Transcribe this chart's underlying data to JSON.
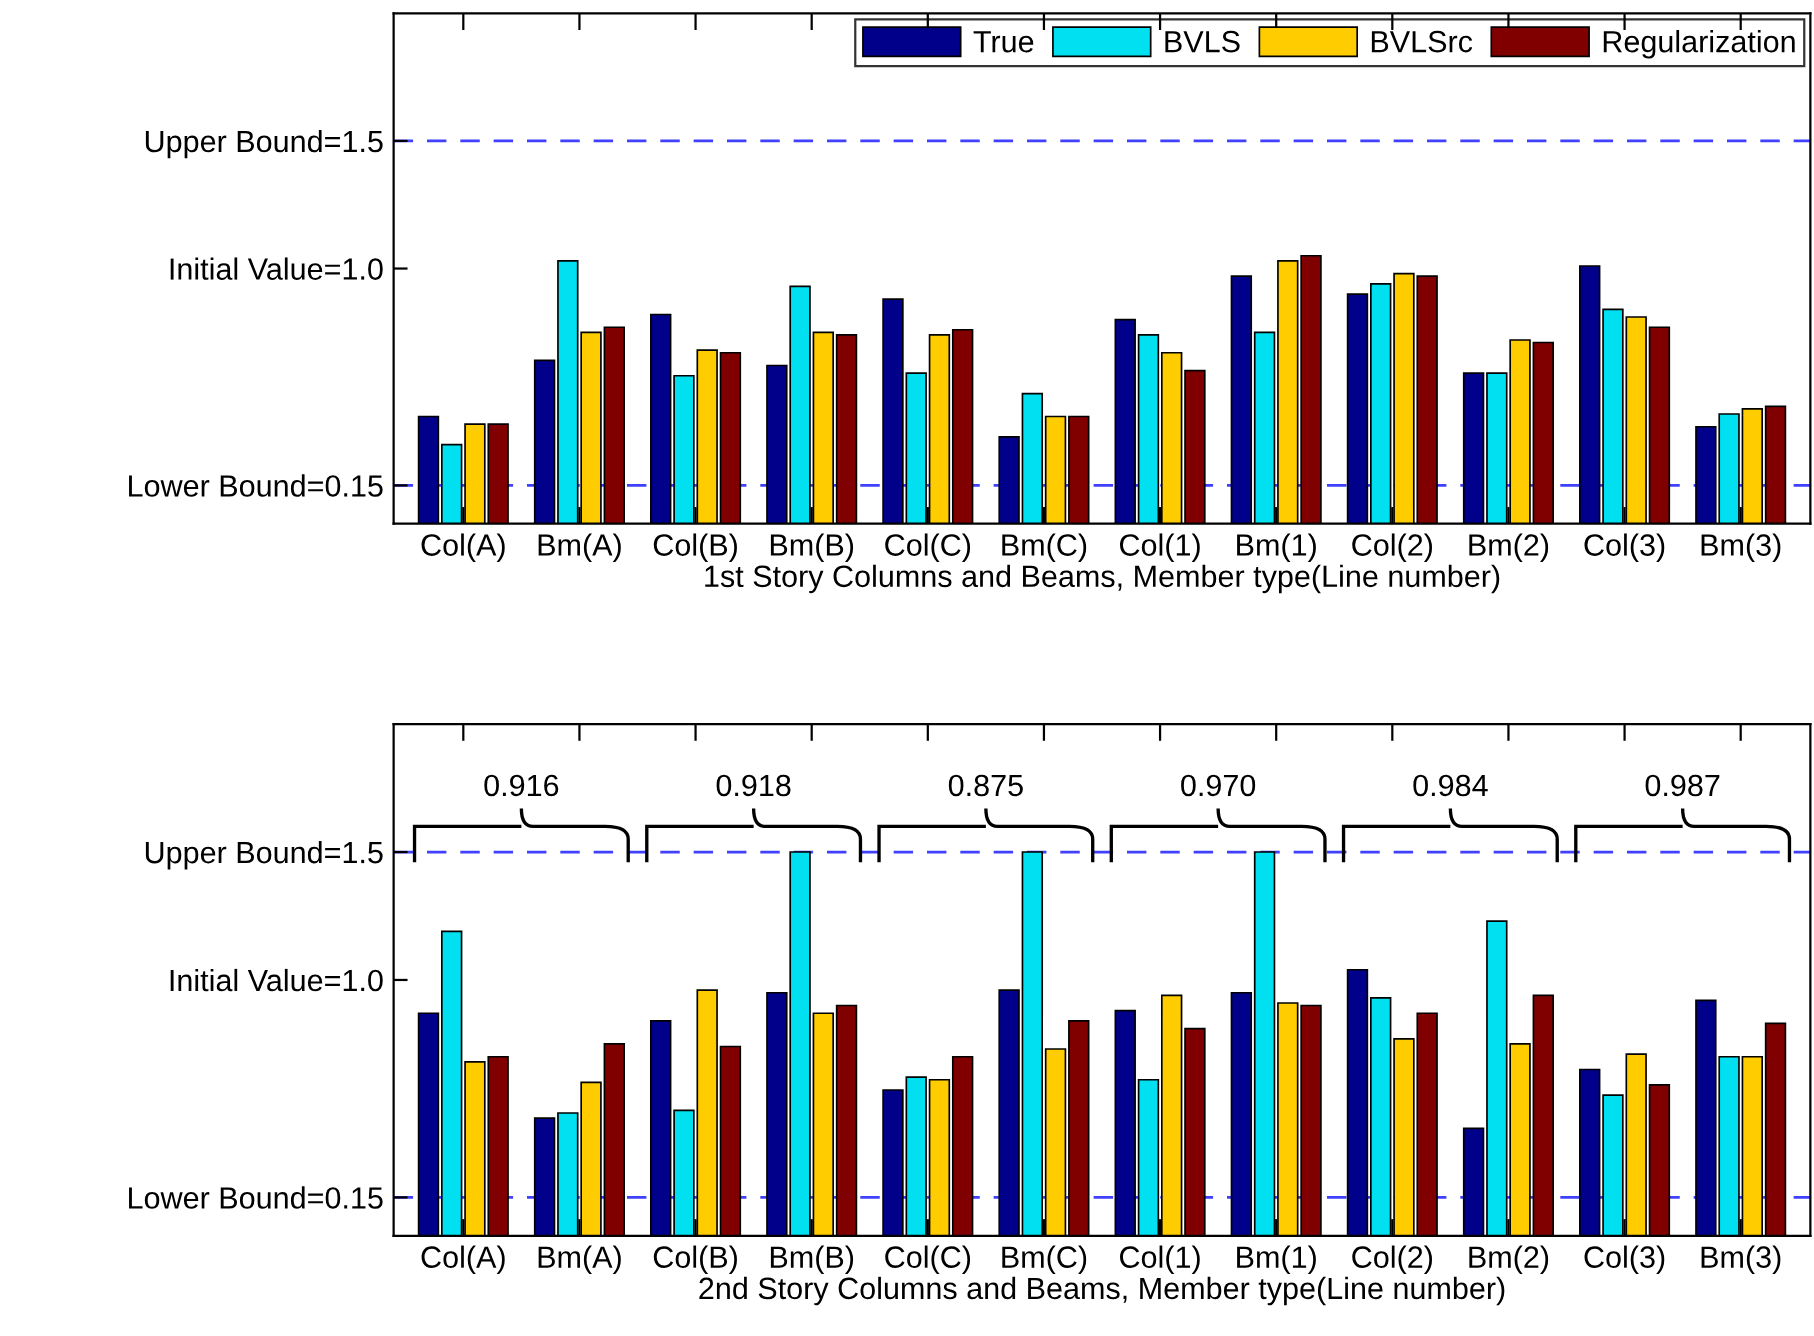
{
  "chart_data": [
    {
      "type": "bar",
      "xlabel": "1st Story Columns and Beams, Member type(Line number)",
      "categories": [
        "Col(A)",
        "Bm(A)",
        "Col(B)",
        "Bm(B)",
        "Col(C)",
        "Bm(C)",
        "Col(1)",
        "Bm(1)",
        "Col(2)",
        "Bm(2)",
        "Col(3)",
        "Bm(3)"
      ],
      "series": [
        {
          "name": "True",
          "color": "#00008b",
          "values": [
            0.42,
            0.64,
            0.82,
            0.62,
            0.88,
            0.34,
            0.8,
            0.97,
            0.9,
            0.59,
            1.01,
            0.38
          ]
        },
        {
          "name": "BVLS",
          "color": "#00e0f0",
          "values": [
            0.31,
            1.03,
            0.58,
            0.93,
            0.59,
            0.51,
            0.74,
            0.75,
            0.94,
            0.59,
            0.84,
            0.43
          ]
        },
        {
          "name": "BVLSrc",
          "color": "#ffcc00",
          "values": [
            0.39,
            0.75,
            0.68,
            0.75,
            0.74,
            0.42,
            0.67,
            1.03,
            0.98,
            0.72,
            0.81,
            0.45
          ]
        },
        {
          "name": "Regularization",
          "color": "#800000",
          "values": [
            0.39,
            0.77,
            0.67,
            0.74,
            0.76,
            0.42,
            0.6,
            1.05,
            0.97,
            0.71,
            0.77,
            0.46
          ]
        }
      ],
      "ylim": [
        0,
        2
      ],
      "yticks": [
        {
          "value": 0.15,
          "label": "Lower Bound=0.15"
        },
        {
          "value": 1.0,
          "label": "Initial Value=1.0"
        },
        {
          "value": 1.5,
          "label": "Upper Bound=1.5"
        }
      ],
      "ref_lines": [
        {
          "axis": "y",
          "value": 0.15,
          "color": "#4040ff",
          "line_style": "dashed"
        },
        {
          "axis": "y",
          "value": 1.5,
          "color": "#4040ff",
          "line_style": "dashed"
        }
      ],
      "legend": "top right",
      "grid": false
    },
    {
      "type": "bar",
      "xlabel": "2nd Story Columns and Beams, Member type(Line number)",
      "categories": [
        "Col(A)",
        "Bm(A)",
        "Col(B)",
        "Bm(B)",
        "Col(C)",
        "Bm(C)",
        "Col(1)",
        "Bm(1)",
        "Col(2)",
        "Bm(2)",
        "Col(3)",
        "Bm(3)"
      ],
      "series": [
        {
          "color": "#00008b",
          "values": [
            0.87,
            0.46,
            0.84,
            0.95,
            0.57,
            0.96,
            0.88,
            0.95,
            1.04,
            0.42,
            0.65,
            0.92
          ]
        },
        {
          "color": "#00e0f0",
          "values": [
            1.19,
            0.48,
            0.49,
            1.5,
            0.62,
            1.5,
            0.61,
            1.5,
            0.93,
            1.23,
            0.55,
            0.7
          ]
        },
        {
          "color": "#ffcc00",
          "values": [
            0.68,
            0.6,
            0.96,
            0.87,
            0.61,
            0.73,
            0.94,
            0.91,
            0.77,
            0.75,
            0.71,
            0.7
          ]
        },
        {
          "color": "#800000",
          "values": [
            0.7,
            0.75,
            0.74,
            0.9,
            0.7,
            0.84,
            0.81,
            0.9,
            0.87,
            0.94,
            0.59,
            0.83
          ]
        }
      ],
      "ylim": [
        0,
        2
      ],
      "yticks": [
        {
          "value": 0.15,
          "label": "Lower Bound=0.15"
        },
        {
          "value": 1.0,
          "label": "Initial Value=1.0"
        },
        {
          "value": 1.5,
          "label": "Upper Bound=1.5"
        }
      ],
      "ref_lines": [
        {
          "axis": "y",
          "value": 0.15,
          "color": "#4040ff",
          "line_style": "dashed"
        },
        {
          "axis": "y",
          "value": 1.5,
          "color": "#4040ff",
          "line_style": "dashed"
        }
      ],
      "annotations": [
        "0.916",
        "0.918",
        "0.875",
        "0.970",
        "0.984",
        "0.987"
      ],
      "grid": false
    }
  ]
}
